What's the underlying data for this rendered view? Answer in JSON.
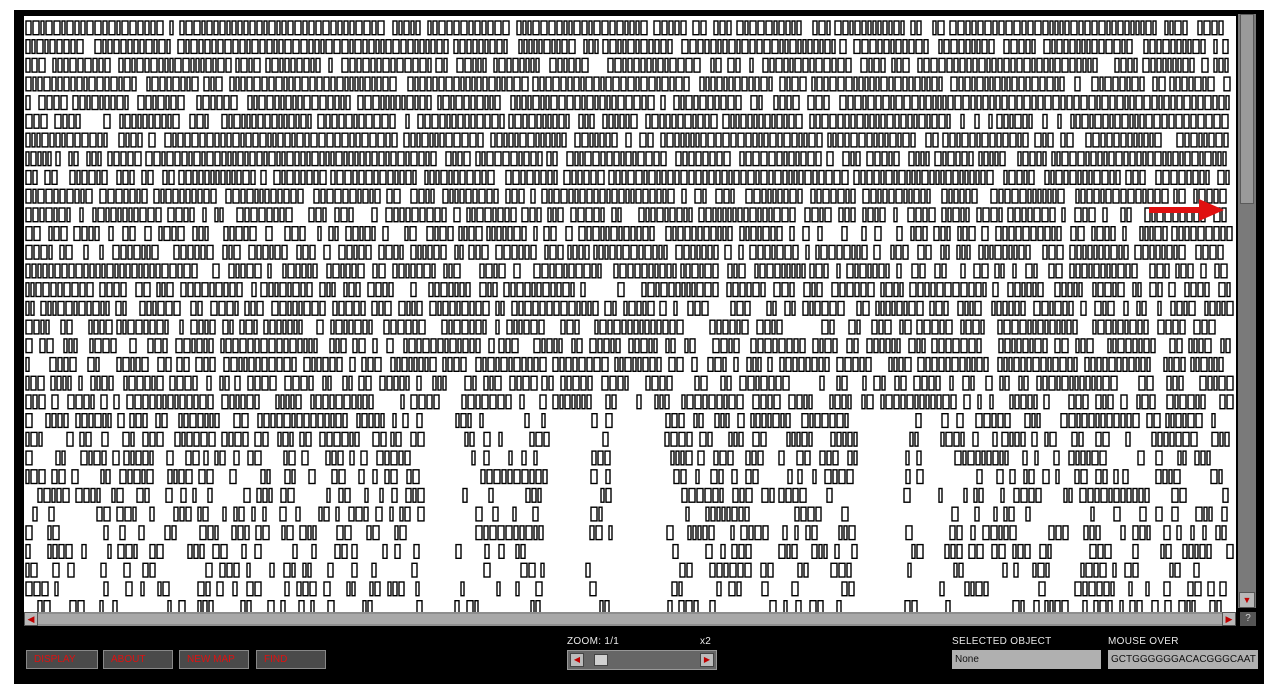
{
  "toolbar": {
    "display_label": "DISPLAY",
    "about_label": "ABOUT",
    "new_map_label": "NEW MAP",
    "find_label": "FIND"
  },
  "zoom": {
    "label": "ZOOM: 1/1",
    "multiplier_label": "x2",
    "level": 0.1
  },
  "selected_object": {
    "label": "SELECTED OBJECT",
    "value": "None"
  },
  "mouse_over": {
    "label": "MOUSE OVER",
    "value": "GCTGGGGGGACACGGGCAAT"
  },
  "help_label": "?",
  "map": {
    "annotation_color": "#e01010",
    "block_color": "#000000",
    "background_color": "#ffffff"
  },
  "icons": {
    "scroll_left": "left-arrow-icon",
    "scroll_right": "right-arrow-icon",
    "scroll_down": "down-arrow-icon",
    "highlight": "right-arrow-icon"
  }
}
